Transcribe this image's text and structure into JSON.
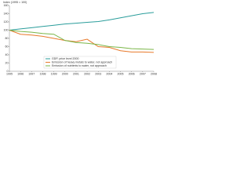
{
  "chart_data": {
    "type": "line",
    "y_label": "Index (1995 = 100)",
    "x": [
      1995,
      1996,
      1997,
      1998,
      1999,
      2000,
      2001,
      2002,
      2003,
      2004,
      2005,
      2006,
      2007,
      2008
    ],
    "series": [
      {
        "name": "GDP, price level 2000",
        "color": "#2a9d9b",
        "values": [
          100,
          103,
          106,
          109,
          112,
          115,
          117,
          119,
          121,
          125,
          130,
          135,
          140,
          143
        ]
      },
      {
        "name": "Emission of heavy metals to water, not approach",
        "color": "#e8792b",
        "values": [
          100,
          90,
          88,
          85,
          80,
          75,
          72,
          78,
          60,
          58,
          50,
          47,
          47,
          46
        ]
      },
      {
        "name": "Emission of nutrients to water, not approach",
        "color": "#7ab648",
        "values": [
          100,
          97,
          95,
          92,
          90,
          75,
          70,
          68,
          65,
          60,
          58,
          55,
          54,
          53
        ]
      }
    ],
    "xlim": [
      1995,
      2008
    ],
    "xticks": [
      1995,
      1996,
      1997,
      1998,
      1999,
      2000,
      2001,
      2002,
      2003,
      2004,
      2005,
      2006,
      2007,
      2008
    ],
    "ylim": [
      0,
      160
    ],
    "yticks": [
      0,
      20,
      40,
      60,
      80,
      100,
      120,
      140,
      160
    ],
    "grid": false
  }
}
